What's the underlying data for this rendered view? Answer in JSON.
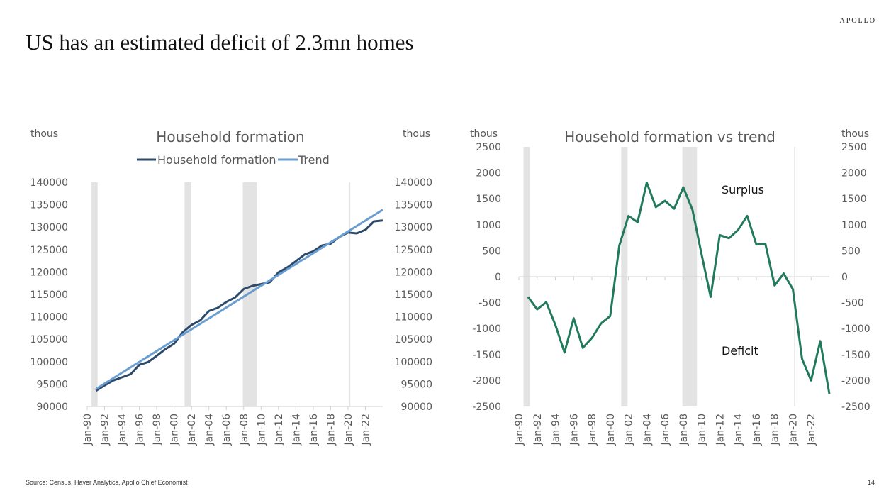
{
  "header": {
    "brand": "APOLLO",
    "title": "US has an estimated deficit of 2.3mn homes"
  },
  "footer": {
    "source": "Source: Census, Haver Analytics, Apollo Chief Economist",
    "page": "14"
  },
  "colors": {
    "household": "#2e4a6b",
    "trend": "#6a9ed1",
    "gap": "#217a5c",
    "recession": "#e3e3e3",
    "covid_line": "#e3e3e3",
    "axis": "#d0d0d0",
    "text": "#595959"
  },
  "chart_data": [
    {
      "type": "line",
      "title": "Household formation",
      "ylabel_left": "thous",
      "ylabel_right": "thous",
      "ylim": [
        90000,
        140000
      ],
      "yticks": [
        90000,
        95000,
        100000,
        105000,
        110000,
        115000,
        120000,
        125000,
        130000,
        135000,
        140000
      ],
      "x_range": [
        1990,
        2024
      ],
      "xtick_labels": [
        "Jan-90",
        "Jan-92",
        "Jan-94",
        "Jan-96",
        "Jan-98",
        "Jan-00",
        "Jan-02",
        "Jan-04",
        "Jan-06",
        "Jan-08",
        "Jan-10",
        "Jan-12",
        "Jan-14",
        "Jan-16",
        "Jan-18",
        "Jan-20",
        "Jan-22"
      ],
      "legend": "top-center",
      "recession_shading": [
        [
          1990.5,
          1991.2
        ],
        [
          2001.2,
          2001.9
        ],
        [
          2007.9,
          2009.5
        ]
      ],
      "vertical_lines": [
        2020.2
      ],
      "series": [
        {
          "name": "Household formation",
          "x": [
            1991,
            1992,
            1993,
            1994,
            1995,
            1996,
            1997,
            1998,
            1999,
            2000,
            2001,
            2002,
            2003,
            2004,
            2005,
            2006,
            2007,
            2008,
            2009,
            2010,
            2011,
            2012,
            2013,
            2014,
            2015,
            2016,
            2017,
            2018,
            2019,
            2020,
            2021,
            2022,
            2023,
            2024
          ],
          "y": [
            93500,
            94700,
            95800,
            96500,
            97200,
            99300,
            99900,
            101300,
            102800,
            104000,
            106600,
            108200,
            109200,
            111300,
            112000,
            113300,
            114300,
            116200,
            116900,
            117300,
            117700,
            119900,
            121000,
            122400,
            123900,
            124600,
            125900,
            126300,
            127800,
            128800,
            128600,
            129400,
            131300,
            131500
          ]
        },
        {
          "name": "Trend",
          "x": [
            1991,
            2024
          ],
          "y": [
            93900,
            133900
          ]
        }
      ]
    },
    {
      "type": "line",
      "title": "Household formation vs trend",
      "ylabel_left": "thous",
      "ylabel_right": "thous",
      "ylim": [
        -2500,
        2500
      ],
      "yticks": [
        -2500,
        -2000,
        -1500,
        -1000,
        -500,
        0,
        500,
        1000,
        1500,
        2000,
        2500
      ],
      "x_range": [
        1990,
        2024
      ],
      "xtick_labels": [
        "Jan-90",
        "Jan-92",
        "Jan-94",
        "Jan-96",
        "Jan-98",
        "Jan-00",
        "Jan-02",
        "Jan-04",
        "Jan-06",
        "Jan-08",
        "Jan-10",
        "Jan-12",
        "Jan-14",
        "Jan-16",
        "Jan-18",
        "Jan-20",
        "Jan-22"
      ],
      "recession_shading": [
        [
          1990.5,
          1991.2
        ],
        [
          2001.2,
          2001.9
        ],
        [
          2007.9,
          2009.5
        ]
      ],
      "vertical_lines": [
        2020.2
      ],
      "annotations": [
        {
          "text": "Surplus",
          "x": 2012.2,
          "y": 1600
        },
        {
          "text": "Deficit",
          "x": 2012.2,
          "y": -1500
        }
      ],
      "series": [
        {
          "name": "",
          "x": [
            1991,
            1992,
            1993,
            1994,
            1995,
            1996,
            1997,
            1998,
            1999,
            2000,
            2001,
            2002,
            2003,
            2004,
            2005,
            2006,
            2007,
            2008,
            2009,
            2010,
            2011,
            2012,
            2013,
            2014,
            2015,
            2016,
            2017,
            2018,
            2019,
            2020,
            2021,
            2022,
            2023,
            2024
          ],
          "y": [
            -390,
            -630,
            -490,
            -930,
            -1460,
            -800,
            -1370,
            -1180,
            -900,
            -760,
            600,
            1170,
            1050,
            1810,
            1340,
            1460,
            1310,
            1720,
            1290,
            440,
            -390,
            800,
            740,
            900,
            1170,
            620,
            630,
            -170,
            60,
            -240,
            -1580,
            -2000,
            -1240,
            -2260
          ]
        }
      ]
    }
  ]
}
